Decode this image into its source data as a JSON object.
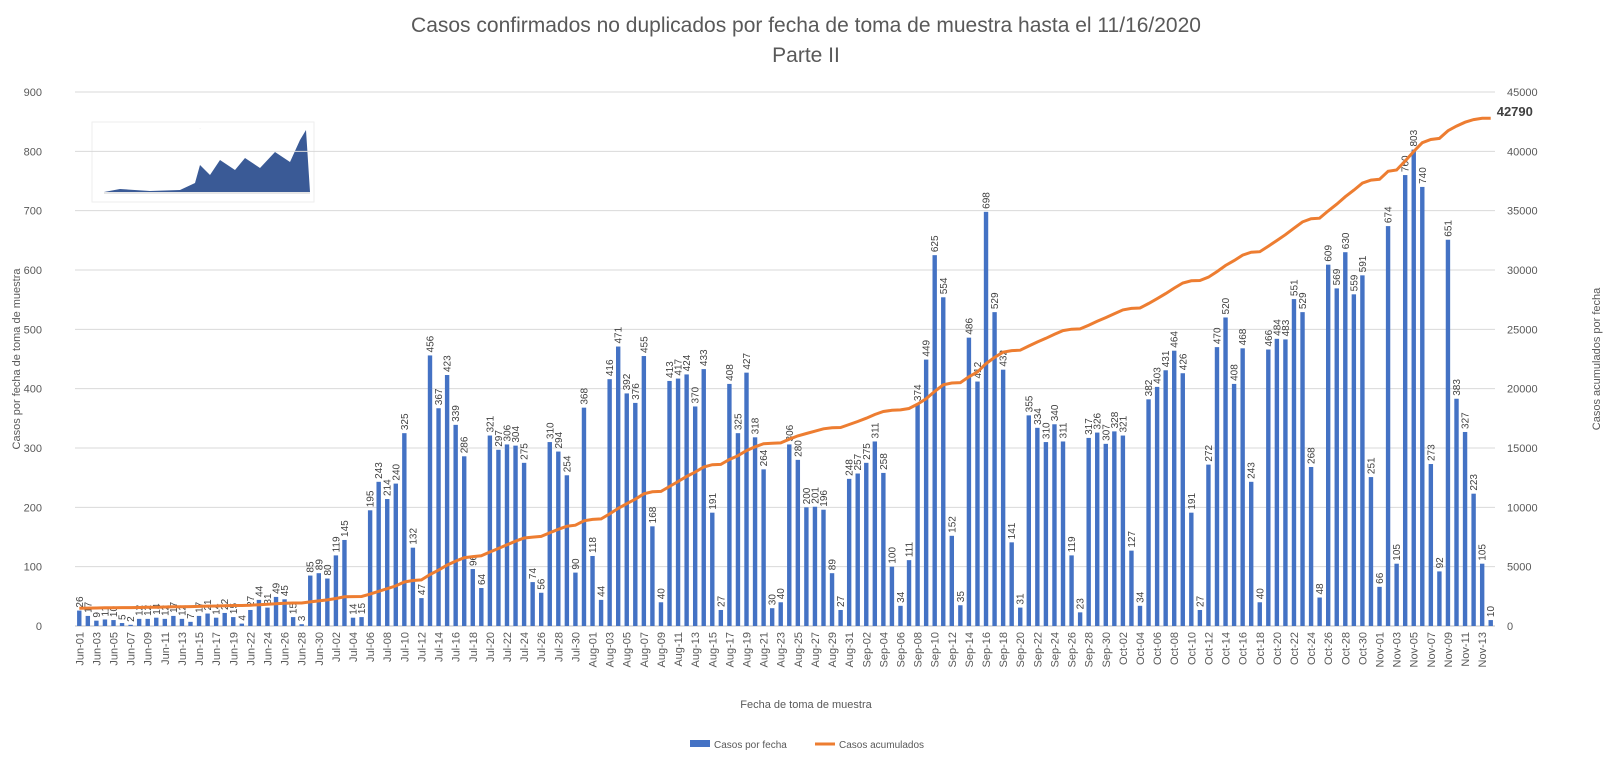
{
  "chart_data": {
    "type": "bar_line",
    "title": "Casos confirmados no duplicados por fecha de toma de muestra hasta el 11/16/2020",
    "subtitle": "Parte II",
    "x_label": "Fecha de toma de muestra",
    "y_label": "Casos por fecha de toma de muestra",
    "y2_label": "Casos acumulados por fecha",
    "legend": "bottom",
    "grid": true,
    "ylim": [
      0,
      900
    ],
    "yticks": [
      0,
      100,
      200,
      300,
      400,
      500,
      600,
      700,
      800,
      900
    ],
    "y2lim": [
      0,
      45000
    ],
    "y2ticks": [
      0,
      5000,
      10000,
      15000,
      20000,
      25000,
      30000,
      35000,
      40000,
      45000
    ],
    "categories": [
      "Jun-01",
      null,
      "Jun-03",
      null,
      "Jun-05",
      null,
      "Jun-07",
      null,
      "Jun-09",
      null,
      "Jun-11",
      null,
      "Jun-13",
      null,
      "Jun-15",
      null,
      "Jun-17",
      null,
      "Jun-19",
      null,
      "Jun-22",
      null,
      "Jun-24",
      null,
      "Jun-26",
      null,
      "Jun-28",
      null,
      "Jun-30",
      null,
      "Jul-02",
      null,
      "Jul-04",
      null,
      "Jul-06",
      null,
      "Jul-08",
      null,
      "Jul-10",
      null,
      "Jul-12",
      null,
      "Jul-14",
      null,
      "Jul-16",
      null,
      "Jul-18",
      null,
      "Jul-20",
      null,
      "Jul-22",
      null,
      "Jul-24",
      null,
      "Jul-26",
      null,
      "Jul-28",
      null,
      "Jul-30",
      null,
      "Aug-01",
      null,
      "Aug-03",
      null,
      "Aug-05",
      null,
      "Aug-07",
      null,
      "Aug-09",
      null,
      "Aug-11",
      null,
      "Aug-13",
      null,
      "Aug-15",
      null,
      "Aug-17",
      null,
      "Aug-19",
      null,
      "Aug-21",
      null,
      "Aug-23",
      null,
      "Aug-25",
      null,
      "Aug-27",
      null,
      "Aug-29",
      null,
      "Aug-31",
      null,
      "Sep-02",
      null,
      "Sep-04",
      null,
      "Sep-06",
      null,
      "Sep-08",
      null,
      "Sep-10",
      null,
      "Sep-12",
      null,
      "Sep-14",
      null,
      "Sep-16",
      null,
      "Sep-18",
      null,
      "Sep-20",
      null,
      "Sep-22",
      null,
      "Sep-24",
      null,
      "Sep-26",
      null,
      "Sep-28",
      null,
      "Sep-30",
      null,
      "Oct-02",
      null,
      "Oct-04",
      null,
      "Oct-06",
      null,
      "Oct-08",
      null,
      "Oct-10",
      null,
      "Oct-12",
      null,
      "Oct-14",
      null,
      "Oct-16",
      null,
      "Oct-18",
      null,
      "Oct-20",
      null,
      "Oct-22",
      null,
      "Oct-24",
      null,
      "Oct-26",
      null,
      "Oct-28",
      null,
      "Oct-30",
      null,
      "Nov-01",
      null,
      "Nov-03",
      null,
      "Nov-05",
      null,
      "Nov-07",
      null,
      "Nov-09",
      null,
      "Nov-11",
      null,
      "Nov-13",
      null
    ],
    "series": [
      {
        "name": "Casos por fecha",
        "color": "#4472c4",
        "values": [
          26,
          17,
          9,
          11,
          10,
          5,
          2,
          12,
          12,
          14,
          12,
          17,
          12,
          7,
          17,
          21,
          14,
          22,
          15,
          4,
          27,
          44,
          31,
          49,
          45,
          15,
          3,
          85,
          89,
          80,
          119,
          145,
          14,
          15,
          195,
          243,
          214,
          240,
          325,
          132,
          47,
          456,
          367,
          423,
          339,
          286,
          96,
          64,
          321,
          297,
          306,
          304,
          275,
          74,
          56,
          310,
          294,
          254,
          90,
          368,
          118,
          44,
          416,
          471,
          392,
          376,
          455,
          168,
          40,
          413,
          417,
          424,
          370,
          433,
          191,
          27,
          408,
          325,
          427,
          318,
          264,
          30,
          40,
          306,
          280,
          200,
          201,
          196,
          89,
          27,
          248,
          257,
          275,
          311,
          258,
          100,
          34,
          111,
          374,
          449,
          625,
          554,
          152,
          35,
          486,
          412,
          698,
          529,
          432,
          141,
          31,
          355,
          334,
          310,
          340,
          311,
          119,
          23,
          317,
          326,
          307,
          328,
          321,
          127,
          34,
          382,
          403,
          431,
          464,
          426,
          191,
          27,
          272,
          470,
          520,
          408,
          468,
          243,
          40,
          466,
          484,
          483,
          551,
          529,
          268,
          48,
          609,
          569,
          630,
          559,
          591,
          251,
          66,
          674,
          105,
          760,
          803,
          740,
          273,
          92,
          651,
          383,
          327,
          223,
          105,
          10
        ]
      },
      {
        "name": "Casos acumulados",
        "color": "#ed7d31",
        "axis": "y2",
        "values": [
          1495,
          1512,
          1521,
          1532,
          1542,
          1547,
          1549,
          1561,
          1573,
          1587,
          1599,
          1616,
          1628,
          1635,
          1652,
          1673,
          1687,
          1709,
          1724,
          1728,
          1755,
          1799,
          1830,
          1879,
          1924,
          1939,
          1942,
          2027,
          2116,
          2196,
          2315,
          2460,
          2474,
          2489,
          2684,
          2927,
          3141,
          3381,
          3706,
          3838,
          3885,
          4341,
          4708,
          5131,
          5470,
          5756,
          5852,
          5916,
          6237,
          6534,
          6840,
          7144,
          7419,
          7493,
          7549,
          7859,
          8153,
          8407,
          8497,
          8865,
          8983,
          9027,
          9443,
          9914,
          10306,
          10682,
          11137,
          11305,
          11345,
          11758,
          12175,
          12599,
          12969,
          13402,
          13593,
          13620,
          14028,
          14353,
          14780,
          15098,
          15362,
          15392,
          15432,
          15738,
          16018,
          16218,
          16419,
          16615,
          16704,
          16731,
          16979,
          17236,
          17511,
          17822,
          18080,
          18180,
          18214,
          18325,
          18699,
          19148,
          19773,
          20327,
          20479,
          20514,
          21000,
          21412,
          22110,
          22639,
          23071,
          23212,
          23243,
          23598,
          23932,
          24242,
          24582,
          24893,
          25012,
          25035,
          25352,
          25678,
          25985,
          26313,
          26634,
          26761,
          26795,
          27177,
          27580,
          28011,
          28475,
          28901,
          29092,
          29119,
          29391,
          29861,
          30381,
          30789,
          31257,
          31500,
          31540,
          32006,
          32490,
          32973,
          33524,
          34053,
          34321,
          34369,
          34978,
          35547,
          36177,
          36736,
          37327,
          37578,
          37644,
          38318,
          38423,
          39183,
          39986,
          40726,
          40999,
          41091,
          41742,
          42125,
          42452,
          42675,
          42780,
          42790
        ]
      }
    ]
  }
}
